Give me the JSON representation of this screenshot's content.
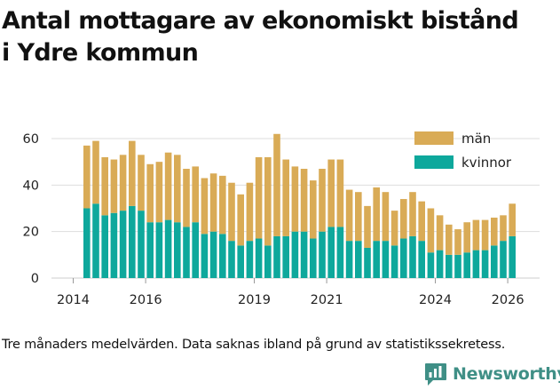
{
  "header": {
    "title_line1": "Antal mottagare av ekonomiskt bistånd",
    "title_line2": "i Ydre kommun"
  },
  "footnote": "Tre månaders medelvärden. Data saknas ibland på grund av statistikssekretess.",
  "brand": {
    "name": "Newsworthy",
    "icon": "newsworthy-logo-icon",
    "color": "#3f8f86"
  },
  "colors": {
    "man": "#d9ab56",
    "kvinnor": "#0ea89c",
    "grid": "#dddddd"
  },
  "chart_data": {
    "type": "bar",
    "stacked": true,
    "title": "Antal mottagare av ekonomiskt bistånd i Ydre kommun",
    "xlabel": "",
    "ylabel": "",
    "ylim": [
      0,
      65
    ],
    "yticks": [
      0,
      20,
      40,
      60
    ],
    "xticks": [
      {
        "label": "2014",
        "index": -1.5
      },
      {
        "label": "2016",
        "index": 6.5
      },
      {
        "label": "2019",
        "index": 18.5
      },
      {
        "label": "2021",
        "index": 26.5
      },
      {
        "label": "2024",
        "index": 38.5
      },
      {
        "label": "2026",
        "index": 46.5
      }
    ],
    "legend_position": "top-right",
    "series": [
      {
        "name": "kvinnor",
        "values": [
          30,
          32,
          27,
          28,
          29,
          31,
          29,
          24,
          24,
          25,
          24,
          22,
          24,
          19,
          20,
          19,
          16,
          14,
          16,
          17,
          14,
          18,
          18,
          20,
          20,
          17,
          20,
          22,
          22,
          16,
          16,
          13,
          16,
          16,
          14,
          17,
          18,
          16,
          11,
          12,
          10,
          10,
          11,
          12,
          12,
          14,
          16,
          18
        ]
      },
      {
        "name": "män",
        "values": [
          27,
          27,
          25,
          23,
          24,
          28,
          24,
          25,
          26,
          29,
          29,
          25,
          24,
          24,
          25,
          25,
          25,
          22,
          25,
          35,
          38,
          44,
          33,
          28,
          27,
          25,
          27,
          29,
          29,
          22,
          21,
          18,
          23,
          21,
          15,
          17,
          19,
          17,
          19,
          15,
          13,
          11,
          13,
          13,
          13,
          12,
          11,
          14
        ]
      }
    ]
  }
}
